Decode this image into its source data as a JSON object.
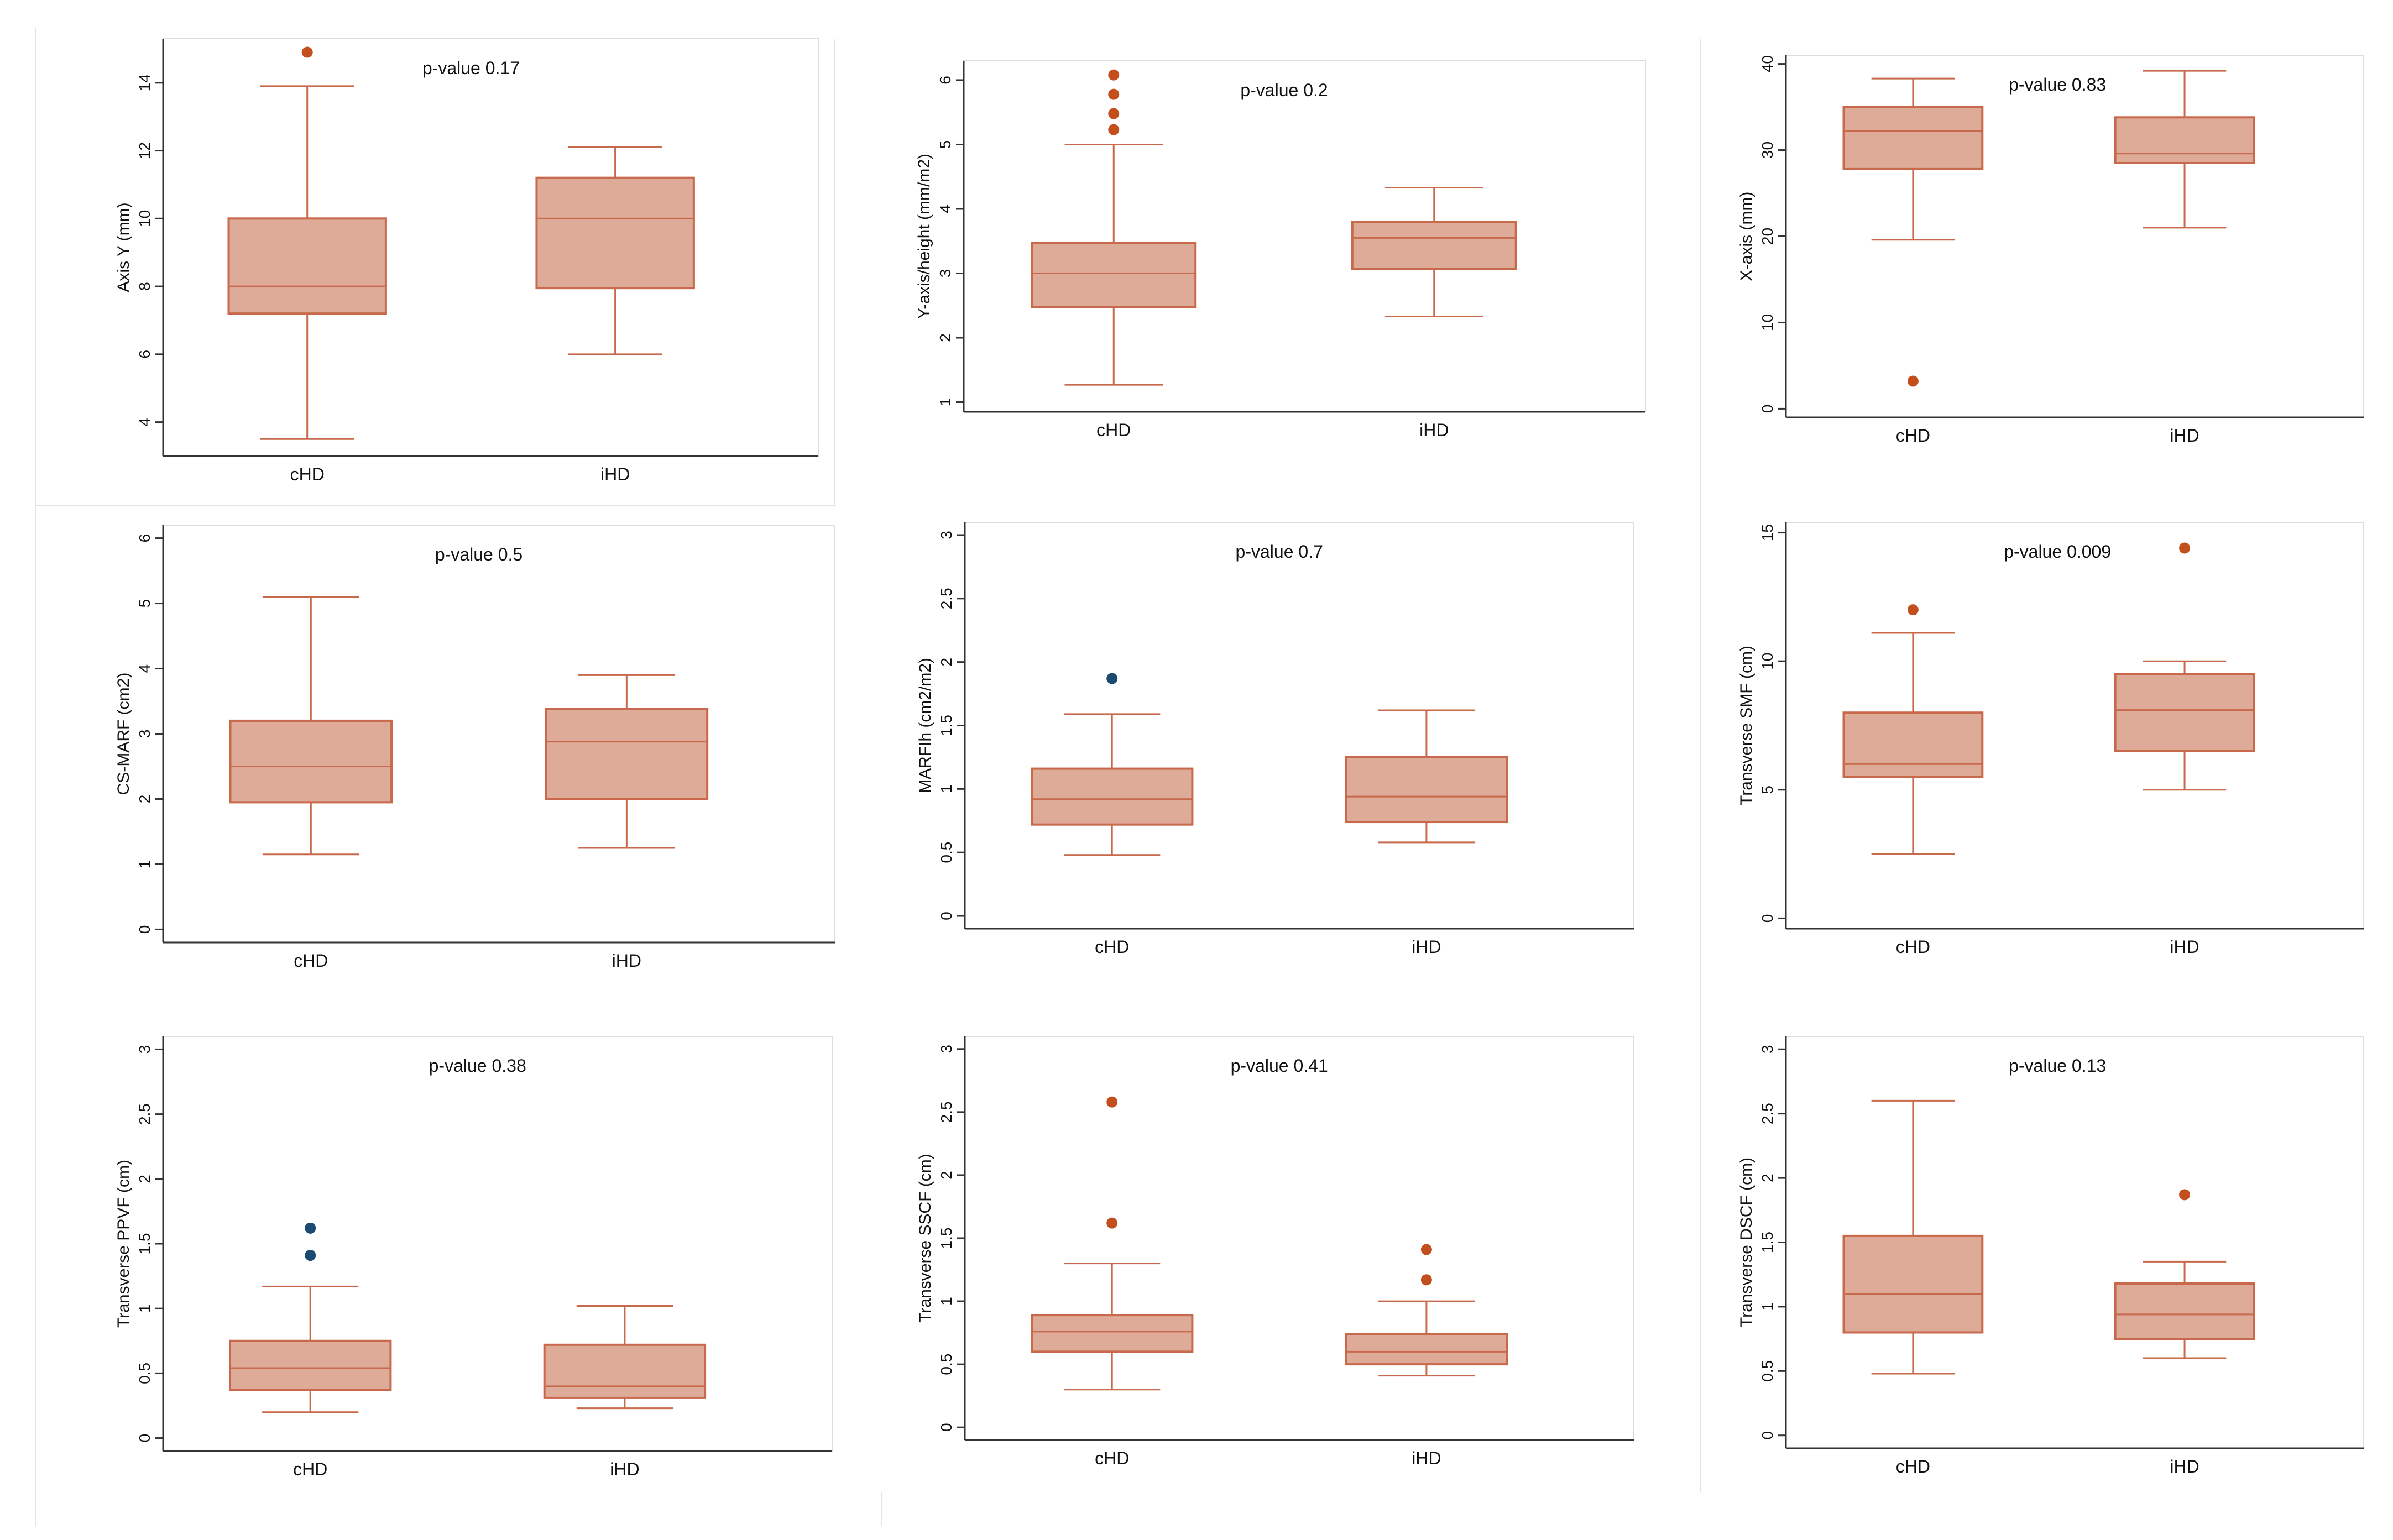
{
  "colors": {
    "box_fill": "#dfab99",
    "box_stroke": "#c8694b",
    "outlier_orange": "#c24f1c",
    "outlier_navy": "#1b4a73",
    "axis": "#333333",
    "text": "#111111"
  },
  "chart_data": [
    {
      "type": "box",
      "title": "p-value 0.17",
      "ylabel": "Axis Y (mm)",
      "ylim": [
        3,
        15.3
      ],
      "yticks": [
        "4",
        "6",
        "8",
        "10",
        "12",
        "14"
      ],
      "categories": [
        "cHD",
        "iHD"
      ],
      "groups": [
        {
          "min": 3.5,
          "q1": 7.2,
          "median": 8.0,
          "q3": 10.0,
          "max": 13.9,
          "outliers": [
            {
              "v": 14.9,
              "c": "outlier_orange"
            }
          ]
        },
        {
          "min": 6.0,
          "q1": 7.95,
          "median": 10.0,
          "q3": 11.2,
          "max": 12.1,
          "outliers": []
        }
      ]
    },
    {
      "type": "box",
      "title": "p-value 0.2",
      "ylabel": "Y-axis/height (mm/m2)",
      "ylim": [
        0.85,
        6.3
      ],
      "yticks": [
        "1",
        "2",
        "3",
        "4",
        "5",
        "6"
      ],
      "categories": [
        "cHD",
        "iHD"
      ],
      "groups": [
        {
          "min": 1.27,
          "q1": 2.48,
          "median": 3.0,
          "q3": 3.47,
          "max": 5.0,
          "outliers": [
            {
              "v": 5.23,
              "c": "outlier_orange"
            },
            {
              "v": 5.48,
              "c": "outlier_orange"
            },
            {
              "v": 5.78,
              "c": "outlier_orange"
            },
            {
              "v": 6.08,
              "c": "outlier_orange"
            }
          ]
        },
        {
          "min": 2.33,
          "q1": 3.07,
          "median": 3.55,
          "q3": 3.8,
          "max": 4.33,
          "outliers": []
        }
      ]
    },
    {
      "type": "box",
      "title": "p-value 0.83",
      "ylabel": "X-axis (mm)",
      "ylim": [
        -1,
        41
      ],
      "yticks": [
        "0",
        "10",
        "20",
        "30",
        "40"
      ],
      "categories": [
        "cHD",
        "iHD"
      ],
      "groups": [
        {
          "min": 19.6,
          "q1": 27.8,
          "median": 32.2,
          "q3": 35.0,
          "max": 38.3,
          "outliers": [
            {
              "v": 3.2,
              "c": "outlier_orange"
            }
          ]
        },
        {
          "min": 21.0,
          "q1": 28.5,
          "median": 29.6,
          "q3": 33.8,
          "max": 39.2,
          "outliers": []
        }
      ]
    },
    {
      "type": "box",
      "title": "p-value 0.5",
      "ylabel": "CS-MARF (cm2)",
      "ylim": [
        -0.2,
        6.2
      ],
      "yticks": [
        "0",
        "1",
        "2",
        "3",
        "4",
        "5",
        "6"
      ],
      "categories": [
        "cHD",
        "iHD"
      ],
      "groups": [
        {
          "min": 1.15,
          "q1": 1.95,
          "median": 2.5,
          "q3": 3.2,
          "max": 5.1,
          "outliers": []
        },
        {
          "min": 1.25,
          "q1": 2.0,
          "median": 2.88,
          "q3": 3.38,
          "max": 3.9,
          "outliers": []
        }
      ]
    },
    {
      "type": "box",
      "title": "p-value 0.7",
      "ylabel": "MARFIh (cm2/m2)",
      "ylim": [
        -0.1,
        3.1
      ],
      "yticks": [
        "0",
        "0.5",
        "1",
        "1.5",
        "2",
        "2.5",
        "3"
      ],
      "categories": [
        "cHD",
        "iHD"
      ],
      "groups": [
        {
          "min": 0.48,
          "q1": 0.72,
          "median": 0.92,
          "q3": 1.16,
          "max": 1.59,
          "outliers": [
            {
              "v": 1.87,
              "c": "outlier_navy"
            }
          ]
        },
        {
          "min": 0.58,
          "q1": 0.74,
          "median": 0.94,
          "q3": 1.25,
          "max": 1.62,
          "outliers": []
        }
      ]
    },
    {
      "type": "box",
      "title": "p-value 0.009",
      "ylabel": "Transverse SMF (cm)",
      "ylim": [
        -0.4,
        15.4
      ],
      "yticks": [
        "0",
        "5",
        "10",
        "15"
      ],
      "categories": [
        "cHD",
        "iHD"
      ],
      "groups": [
        {
          "min": 2.5,
          "q1": 5.5,
          "median": 6.0,
          "q3": 8.0,
          "max": 11.1,
          "outliers": [
            {
              "v": 12.0,
              "c": "outlier_orange"
            }
          ]
        },
        {
          "min": 5.0,
          "q1": 6.5,
          "median": 8.1,
          "q3": 9.5,
          "max": 10.0,
          "outliers": [
            {
              "v": 14.4,
              "c": "outlier_orange"
            }
          ]
        }
      ]
    },
    {
      "type": "box",
      "title": "p-value 0.38",
      "ylabel": "Transverse PPVF (cm)",
      "ylim": [
        -0.1,
        3.1
      ],
      "yticks": [
        "0",
        "0.5",
        "1",
        "1.5",
        "2",
        "2.5",
        "3"
      ],
      "categories": [
        "cHD",
        "iHD"
      ],
      "groups": [
        {
          "min": 0.2,
          "q1": 0.37,
          "median": 0.54,
          "q3": 0.75,
          "max": 1.17,
          "outliers": [
            {
              "v": 1.41,
              "c": "outlier_navy"
            },
            {
              "v": 1.62,
              "c": "outlier_navy"
            }
          ]
        },
        {
          "min": 0.23,
          "q1": 0.31,
          "median": 0.4,
          "q3": 0.72,
          "max": 1.02,
          "outliers": []
        }
      ]
    },
    {
      "type": "box",
      "title": "p-value 0.41",
      "ylabel": "Transverse SSCF (cm)",
      "ylim": [
        -0.1,
        3.1
      ],
      "yticks": [
        "0",
        "0.5",
        "1",
        "1.5",
        "2",
        "2.5",
        "3"
      ],
      "categories": [
        "cHD",
        "iHD"
      ],
      "groups": [
        {
          "min": 0.3,
          "q1": 0.6,
          "median": 0.76,
          "q3": 0.89,
          "max": 1.3,
          "outliers": [
            {
              "v": 1.62,
              "c": "outlier_orange"
            },
            {
              "v": 2.58,
              "c": "outlier_orange"
            }
          ]
        },
        {
          "min": 0.41,
          "q1": 0.5,
          "median": 0.6,
          "q3": 0.74,
          "max": 1.0,
          "outliers": [
            {
              "v": 1.17,
              "c": "outlier_orange"
            },
            {
              "v": 1.41,
              "c": "outlier_orange"
            }
          ]
        }
      ]
    },
    {
      "type": "box",
      "title": "p-value 0.13",
      "ylabel": "Transverse DSCF (cm)",
      "ylim": [
        -0.1,
        3.1
      ],
      "yticks": [
        "0",
        "0.5",
        "1",
        "1.5",
        "2",
        "2.5",
        "3"
      ],
      "categories": [
        "cHD",
        "iHD"
      ],
      "groups": [
        {
          "min": 0.48,
          "q1": 0.8,
          "median": 1.1,
          "q3": 1.55,
          "max": 2.6,
          "outliers": []
        },
        {
          "min": 0.6,
          "q1": 0.75,
          "median": 0.94,
          "q3": 1.18,
          "max": 1.35,
          "outliers": [
            {
              "v": 1.87,
              "c": "outlier_orange"
            }
          ]
        }
      ]
    }
  ]
}
